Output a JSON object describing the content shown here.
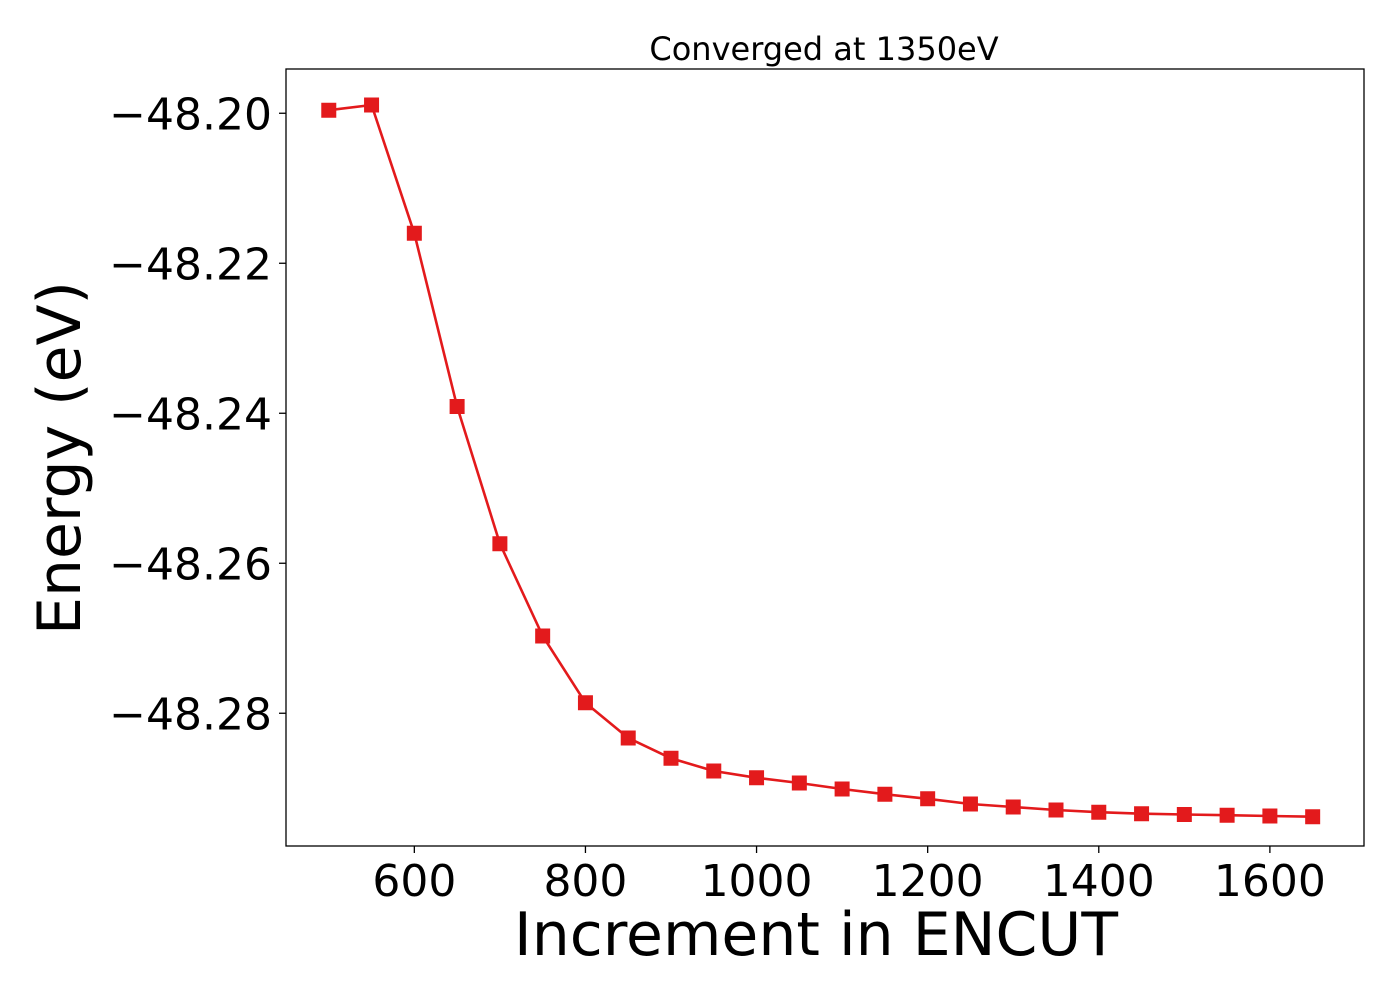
{
  "chart_data": {
    "type": "line",
    "title": "Converged at 1350eV",
    "xlabel": "Increment in ENCUT",
    "ylabel": "Energy (eV)",
    "xlim": [
      450,
      1710
    ],
    "ylim": [
      -48.2977,
      -48.1941
    ],
    "xticks": [
      600,
      800,
      1000,
      1200,
      1400,
      1600
    ],
    "xtick_labels": [
      "600",
      "800",
      "1000",
      "1200",
      "1400",
      "1600"
    ],
    "yticks": [
      -48.2,
      -48.22,
      -48.24,
      -48.26,
      -48.28
    ],
    "ytick_labels": [
      "−48.20",
      "−48.22",
      "−48.24",
      "−48.26",
      "−48.28"
    ],
    "grid": false,
    "series": [
      {
        "color": "#e31a1c",
        "marker": "square",
        "x": [
          500,
          550,
          600,
          650,
          700,
          750,
          800,
          850,
          900,
          950,
          1000,
          1050,
          1100,
          1150,
          1200,
          1250,
          1300,
          1350,
          1400,
          1450,
          1500,
          1550,
          1600,
          1650
        ],
        "y": [
          -48.1996,
          -48.1989,
          -48.216,
          -48.2391,
          -48.2574,
          -48.2697,
          -48.2786,
          -48.2833,
          -48.286,
          -48.2877,
          -48.2886,
          -48.2893,
          -48.2901,
          -48.2908,
          -48.2914,
          -48.2921,
          -48.2925,
          -48.2929,
          -48.2932,
          -48.2934,
          -48.2935,
          -48.2936,
          -48.2937,
          -48.2938
        ]
      }
    ]
  }
}
